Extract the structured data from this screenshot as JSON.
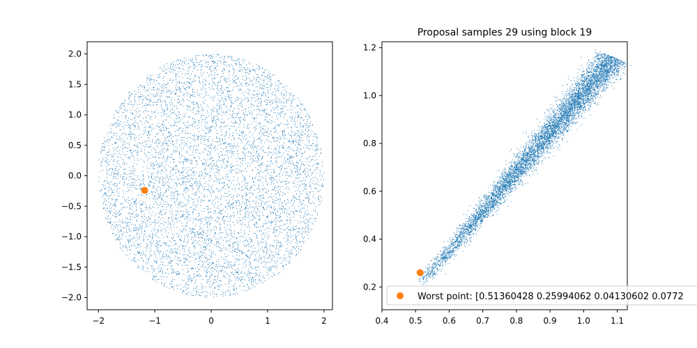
{
  "chart_data": [
    {
      "type": "scatter",
      "title": "",
      "xlabel": "",
      "ylabel": "",
      "xlim": [
        -2.2,
        2.15
      ],
      "ylim": [
        -2.2,
        2.2
      ],
      "xticks": [
        -2,
        -1,
        0,
        1,
        2
      ],
      "xtick_labels": [
        "−2",
        "−1",
        "0",
        "1",
        "2"
      ],
      "yticks": [
        -2.0,
        -1.5,
        -1.0,
        -0.5,
        0.0,
        0.5,
        1.0,
        1.5,
        2.0
      ],
      "ytick_labels": [
        "−2.0",
        "−1.5",
        "−1.0",
        "−0.5",
        "0.0",
        "0.5",
        "1.0",
        "1.5",
        "2.0"
      ],
      "grid": false,
      "series": [
        {
          "marker": "point",
          "color": "#1f77b4",
          "approx_count": 7000,
          "distribution": "roughly uniform disk centered at (0, 0), radius about 2.0",
          "values": []
        },
        {
          "marker": "circle",
          "color": "#ff7f0e",
          "points": [
            [
              -1.18,
              -0.24
            ]
          ]
        }
      ]
    },
    {
      "type": "scatter",
      "title": "Proposal samples 29 using block 19",
      "xlabel": "",
      "ylabel": "",
      "xlim": [
        0.4,
        1.13
      ],
      "ylim": [
        0.105,
        1.225
      ],
      "xticks": [
        0.4,
        0.5,
        0.6,
        0.7,
        0.8,
        0.9,
        1.0,
        1.1
      ],
      "xtick_labels": [
        "0.4",
        "0.5",
        "0.6",
        "0.7",
        "0.8",
        "0.9",
        "1.0",
        "1.1"
      ],
      "yticks": [
        0.2,
        0.4,
        0.6,
        0.8,
        1.0,
        1.2
      ],
      "ytick_labels": [
        "0.2",
        "0.4",
        "0.6",
        "0.8",
        "1.0",
        "1.2"
      ],
      "grid": false,
      "legend_position": "lower-right",
      "series": [
        {
          "marker": "point",
          "color": "#1f77b4",
          "approx_count": 7000,
          "distribution": "narrow elongated cloud along the line from (0.51, 0.20) to (1.09, 1.16), densest near (1.0, 1.0)",
          "values": []
        },
        {
          "name": "Worst point: [0.51360428 0.25994062 0.04130602 0.0772",
          "marker": "circle",
          "color": "#ff7f0e",
          "points": [
            [
              0.5136,
              0.2599
            ]
          ]
        }
      ]
    }
  ]
}
